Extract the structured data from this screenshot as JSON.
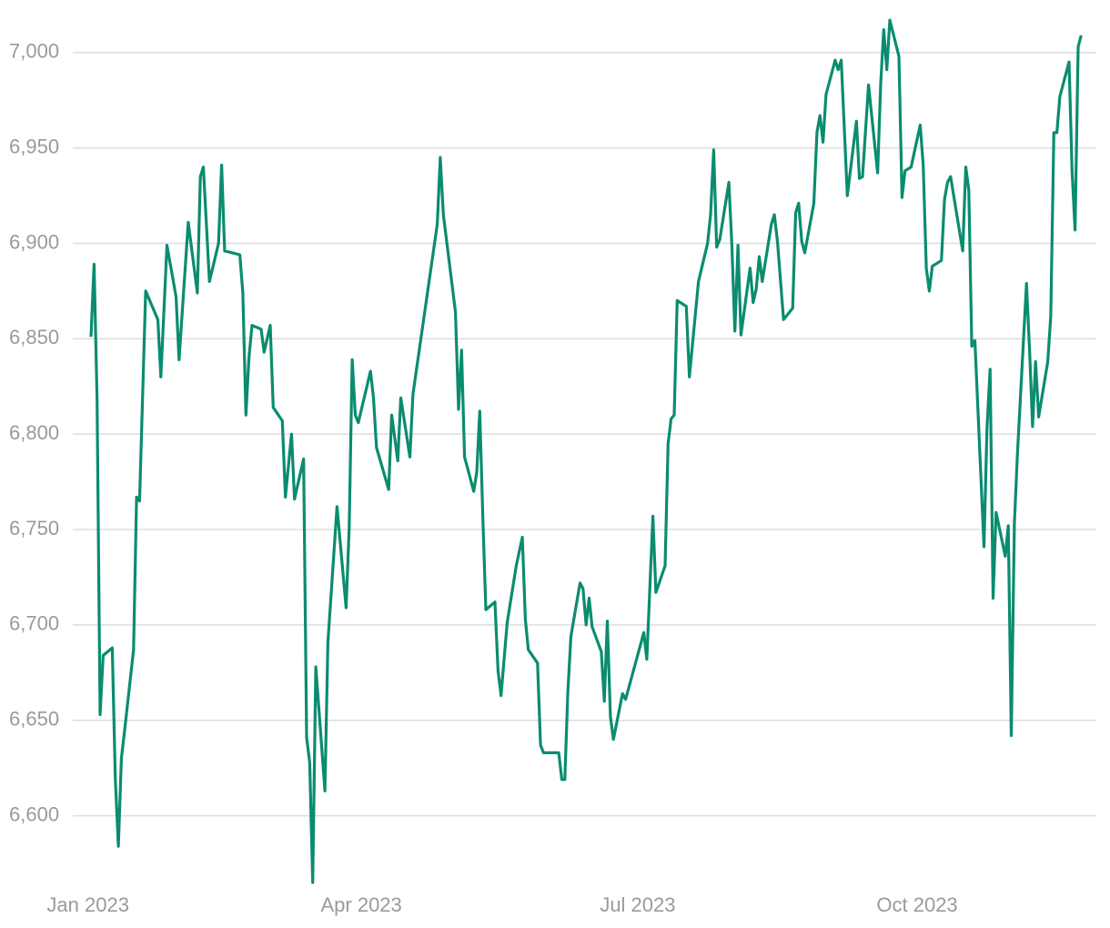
{
  "chart_data": {
    "type": "line",
    "color": "#0b8c6f",
    "grid": true,
    "xlim": [
      -5,
      332
    ],
    "xticks": [
      {
        "value": 0,
        "label": "Jan 2023"
      },
      {
        "value": 90,
        "label": "Apr 2023"
      },
      {
        "value": 181,
        "label": "Jul 2023"
      },
      {
        "value": 273,
        "label": "Oct 2023"
      }
    ],
    "ylim": [
      6565,
      7018
    ],
    "yticks": [
      {
        "value": 6600,
        "label": "6,600"
      },
      {
        "value": 6650,
        "label": "6,650"
      },
      {
        "value": 6700,
        "label": "6,700"
      },
      {
        "value": 6750,
        "label": "6,750"
      },
      {
        "value": 6800,
        "label": "6,800"
      },
      {
        "value": 6850,
        "label": "6,850"
      },
      {
        "value": 6900,
        "label": "6,900"
      },
      {
        "value": 6950,
        "label": "6,950"
      },
      {
        "value": 7000,
        "label": "7,000"
      }
    ],
    "x": [
      1,
      2,
      3,
      4,
      5,
      8,
      9,
      10,
      11,
      12,
      15,
      16,
      17,
      19,
      23,
      24,
      26,
      29,
      30,
      33,
      36,
      37,
      38,
      40,
      43,
      44,
      45,
      50,
      51,
      52,
      53,
      54,
      57,
      58,
      60,
      61,
      64,
      65,
      67,
      68,
      71,
      72,
      73,
      74,
      75,
      78,
      79,
      82,
      85,
      86,
      87,
      88,
      89,
      93,
      94,
      95,
      99,
      100,
      102,
      103,
      106,
      107,
      115,
      116,
      117,
      121,
      122,
      123,
      124,
      127,
      128,
      129,
      130,
      131,
      134,
      135,
      136,
      138,
      141,
      143,
      144,
      145,
      148,
      149,
      150,
      155,
      156,
      157,
      158,
      159,
      162,
      163,
      164,
      165,
      166,
      169,
      170,
      171,
      172,
      173,
      176,
      177,
      183,
      184,
      186,
      187,
      190,
      191,
      192,
      193,
      194,
      197,
      198,
      201,
      204,
      205,
      206,
      207,
      208,
      211,
      212,
      213,
      214,
      215,
      218,
      219,
      220,
      221,
      222,
      225,
      226,
      227,
      229,
      232,
      233,
      234,
      235,
      236,
      239,
      240,
      241,
      242,
      243,
      246,
      247,
      248,
      250,
      253,
      254,
      255,
      257,
      260,
      261,
      262,
      263,
      264,
      267,
      268,
      269,
      271,
      274,
      275,
      276,
      277,
      278,
      281,
      282,
      283,
      284,
      288,
      289,
      290,
      291,
      292,
      295,
      296,
      297,
      298,
      299,
      302,
      303,
      304,
      305,
      306,
      309,
      310,
      311,
      312,
      313,
      316,
      317,
      318,
      319,
      320,
      323,
      324,
      325,
      326,
      327
    ],
    "values": [
      6851,
      6889,
      6818,
      6653,
      6684,
      6688,
      6620,
      6584,
      6630,
      6644,
      6687,
      6767,
      6765,
      6875,
      6860,
      6830,
      6899,
      6872,
      6839,
      6911,
      6874,
      6935,
      6940,
      6880,
      6900,
      6941,
      6896,
      6894,
      6874,
      6810,
      6840,
      6857,
      6855,
      6843,
      6857,
      6814,
      6807,
      6767,
      6800,
      6766,
      6787,
      6641,
      6628,
      6565,
      6678,
      6613,
      6691,
      6762,
      6709,
      6751,
      6839,
      6810,
      6806,
      6833,
      6819,
      6793,
      6771,
      6810,
      6786,
      6819,
      6788,
      6821,
      6910,
      6945,
      6915,
      6864,
      6813,
      6844,
      6788,
      6770,
      6780,
      6812,
      6756,
      6708,
      6712,
      6676,
      6663,
      6701,
      6731,
      6746,
      6703,
      6687,
      6680,
      6637,
      6633,
      6633,
      6619,
      6619,
      6665,
      6694,
      6722,
      6719,
      6700,
      6714,
      6699,
      6686,
      6660,
      6702,
      6652,
      6640,
      6664,
      6661,
      6696,
      6682,
      6757,
      6717,
      6731,
      6795,
      6808,
      6810,
      6870,
      6867,
      6830,
      6880,
      6900,
      6915,
      6949,
      6898,
      6902,
      6932,
      6899,
      6854,
      6899,
      6852,
      6887,
      6869,
      6876,
      6893,
      6880,
      6910,
      6915,
      6901,
      6860,
      6866,
      6916,
      6921,
      6901,
      6895,
      6921,
      6958,
      6967,
      6953,
      6978,
      6996,
      6991,
      6996,
      6925,
      6964,
      6934,
      6935,
      6983,
      6937,
      6984,
      7012,
      6991,
      7017,
      6998,
      6924,
      6938,
      6940,
      6962,
      6941,
      6887,
      6875,
      6888,
      6891,
      6923,
      6932,
      6935,
      6896,
      6940,
      6928,
      6846,
      6849,
      6741,
      6803,
      6834,
      6714,
      6759,
      6736,
      6752,
      6642,
      6753,
      6789,
      6879,
      6844,
      6804,
      6838,
      6809,
      6838,
      6862,
      6958,
      6958,
      6977,
      6995,
      6938,
      6907,
      7003,
      7009
    ]
  }
}
